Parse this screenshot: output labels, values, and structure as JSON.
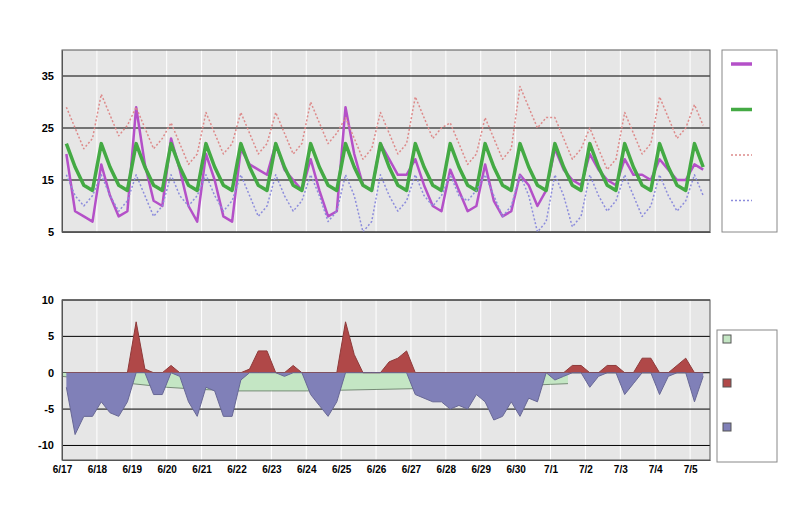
{
  "chart_data": [
    {
      "type": "line",
      "x": [
        0.125,
        0.375,
        0.625,
        0.875,
        1.125,
        1.375,
        1.625,
        1.875,
        2.125,
        2.375,
        2.625,
        2.875,
        3.125,
        3.375,
        3.625,
        3.875,
        4.125,
        4.375,
        4.625,
        4.875,
        5.125,
        5.375,
        5.625,
        5.875,
        6.125,
        6.375,
        6.625,
        6.875,
        7.125,
        7.375,
        7.625,
        7.875,
        8.125,
        8.375,
        8.625,
        8.875,
        9.125,
        9.375,
        9.625,
        9.875,
        10.125,
        10.375,
        10.625,
        10.875,
        11.125,
        11.375,
        11.625,
        11.875,
        12.125,
        12.375,
        12.625,
        12.875,
        13.125,
        13.375,
        13.625,
        13.875,
        14.125,
        14.375,
        14.625,
        14.875,
        15.125,
        15.375,
        15.625,
        15.875,
        16.125,
        16.375,
        16.625,
        16.875,
        17.125,
        17.375,
        17.625,
        17.875,
        18.125,
        18.375
      ],
      "series": [
        {
          "color": "#b450c8",
          "line_style": "solid",
          "values": [
            20,
            9,
            8,
            7,
            18,
            12,
            8,
            9,
            29,
            18,
            11,
            10,
            23,
            17,
            10,
            7,
            20,
            15,
            8,
            7,
            21,
            18,
            17,
            16,
            22,
            17,
            15,
            13,
            19,
            13,
            8,
            9,
            29,
            20,
            14,
            13,
            22,
            19,
            16,
            16,
            19,
            14,
            10,
            9,
            17,
            13,
            9,
            10,
            18,
            11,
            8,
            9,
            16,
            14,
            10,
            13,
            21,
            17,
            15,
            14,
            20,
            17,
            15,
            14,
            19,
            16,
            16,
            15,
            19,
            17,
            15,
            15,
            18,
            17
          ]
        },
        {
          "color": "#44aa44",
          "line_style": "solid",
          "values": [
            22,
            17.5,
            14,
            13,
            22,
            17.5,
            14,
            13,
            22,
            17.5,
            14,
            13,
            22,
            17.5,
            14,
            13,
            22,
            17.5,
            14,
            13,
            22,
            17.5,
            14,
            13,
            22,
            17.5,
            14,
            13,
            22,
            17.5,
            14,
            13,
            22,
            17.5,
            14,
            13,
            22,
            17.5,
            14,
            13,
            22,
            17.5,
            14,
            13,
            22,
            17.5,
            14,
            13,
            22,
            17.5,
            14,
            13,
            22,
            17.5,
            14,
            13,
            22,
            17.5,
            14,
            13,
            22,
            17.5,
            14,
            13,
            22,
            17.5,
            14,
            13,
            22,
            17.5,
            14,
            13,
            22,
            17.5
          ]
        },
        {
          "color": "#dd8a8a",
          "line_style": "dotted",
          "values": [
            29,
            25,
            21,
            23,
            31.5,
            27.5,
            23.5,
            25.5,
            29,
            25,
            21,
            23,
            26,
            22,
            18,
            20,
            28,
            24,
            20,
            22,
            28,
            24,
            20,
            22,
            28,
            24,
            20,
            22,
            30,
            26,
            22,
            24,
            27,
            23,
            19,
            21,
            28,
            24,
            20,
            22,
            31,
            27,
            23,
            25,
            26,
            22,
            18,
            20,
            27,
            23,
            19,
            21,
            33,
            29,
            25,
            27,
            27,
            23,
            19,
            21,
            25,
            21,
            17,
            19,
            28,
            24,
            20,
            22,
            31,
            27,
            23,
            25,
            29.5,
            25.5
          ]
        },
        {
          "color": "#8c8cdc",
          "line_style": "dotted",
          "values": [
            16,
            12,
            10,
            12,
            16,
            12,
            9,
            11,
            16,
            12,
            8,
            10,
            16,
            12,
            10,
            12,
            16,
            12,
            9,
            11,
            16,
            12,
            8,
            10,
            16,
            12,
            9,
            11,
            16,
            12,
            7,
            9,
            16,
            12,
            5,
            7,
            16,
            12,
            9,
            11,
            16,
            12,
            10,
            12,
            16,
            12,
            11,
            13,
            16,
            12,
            8,
            10,
            16,
            12,
            5,
            7,
            16,
            12,
            6,
            8,
            16,
            12,
            9,
            11,
            16,
            12,
            8,
            10,
            16,
            12,
            9,
            11,
            16,
            12
          ]
        }
      ],
      "xlim": [
        0,
        18.57
      ],
      "xticks": [
        0,
        1,
        2,
        3,
        4,
        5,
        6,
        7,
        8,
        9,
        10,
        11,
        12,
        13,
        14,
        15,
        16,
        17,
        18
      ],
      "ylim": [
        5,
        40
      ],
      "yticks": [
        5,
        15,
        25,
        35
      ],
      "grid": true,
      "tick_labels": "y"
    },
    {
      "type": "area",
      "x": [
        0.125,
        0.375,
        0.625,
        0.875,
        1.125,
        1.375,
        1.625,
        1.875,
        2.125,
        2.375,
        2.625,
        2.875,
        3.125,
        3.375,
        3.625,
        3.875,
        4.125,
        4.375,
        4.625,
        4.875,
        5.125,
        5.375,
        5.625,
        5.875,
        6.125,
        6.375,
        6.625,
        6.875,
        7.125,
        7.375,
        7.625,
        7.875,
        8.125,
        8.375,
        8.625,
        8.875,
        9.125,
        9.375,
        9.625,
        9.875,
        10.125,
        10.375,
        10.625,
        10.875,
        11.125,
        11.375,
        11.625,
        11.875,
        12.125,
        12.375,
        12.625,
        12.875,
        13.125,
        13.375,
        13.625,
        13.875,
        14.125,
        14.375,
        14.625,
        14.875,
        15.125,
        15.375,
        15.625,
        15.875,
        16.125,
        16.375,
        16.625,
        16.875,
        17.125,
        17.375,
        17.625,
        17.875,
        18.125,
        18.375
      ],
      "series": [
        {
          "color": "#c4e6c4",
          "x": [
            0,
            1,
            2,
            3,
            4,
            5,
            6,
            7,
            8,
            9,
            10,
            11,
            12,
            13,
            14,
            14.5
          ],
          "values": [
            -0.5,
            -1,
            -1.5,
            -2,
            -2.3,
            -2.5,
            -2.5,
            -2.5,
            -2.4,
            -2.3,
            -2.2,
            -2.2,
            -2,
            -1.8,
            -1.6,
            -1.5
          ]
        },
        {
          "color": "#b04848",
          "values": [
            0,
            0,
            0,
            0,
            0,
            0,
            0,
            0,
            7,
            0.5,
            0,
            0,
            1,
            0,
            0,
            0,
            0,
            0,
            0,
            0,
            0,
            0.5,
            3,
            3,
            0,
            0,
            1,
            0,
            0,
            0,
            0,
            0,
            7,
            2.5,
            0,
            0,
            0,
            1.5,
            2,
            3,
            0,
            0,
            0,
            0,
            0,
            0,
            0,
            0,
            0,
            0,
            0,
            0,
            0,
            0,
            0,
            0,
            0,
            0,
            1,
            1,
            0,
            0,
            1,
            1,
            0,
            0,
            2,
            2,
            0,
            0,
            1,
            2,
            0,
            0
          ]
        },
        {
          "color": "#8080b8",
          "values": [
            -2,
            -8.5,
            -6,
            -6,
            -4,
            -5.5,
            -6,
            -4,
            0,
            0,
            -3,
            -3,
            0,
            -0.5,
            -4,
            -6,
            -2,
            -2.5,
            -6,
            -6,
            -1,
            0,
            0,
            0,
            0,
            -0.5,
            0,
            0,
            -3,
            -4.5,
            -6,
            -4,
            0,
            0,
            0,
            0,
            0,
            0,
            0,
            0,
            -3,
            -3.5,
            -4,
            -4,
            -5,
            -4.5,
            -5,
            -3,
            -4,
            -6.5,
            -6,
            -4,
            -6,
            -3.5,
            -4,
            0,
            -1,
            -0.5,
            0,
            0,
            -2,
            -0.5,
            0,
            0,
            -3,
            -1.5,
            0,
            0,
            -3,
            -0.5,
            0,
            0,
            -4,
            -0.5
          ]
        }
      ],
      "xlim": [
        0,
        18.57
      ],
      "xticks": [
        {
          "value": 0,
          "label": "6/17"
        },
        {
          "value": 1,
          "label": "6/18"
        },
        {
          "value": 2,
          "label": "6/19"
        },
        {
          "value": 3,
          "label": "6/20"
        },
        {
          "value": 4,
          "label": "6/21"
        },
        {
          "value": 5,
          "label": "6/22"
        },
        {
          "value": 6,
          "label": "6/23"
        },
        {
          "value": 7,
          "label": "6/24"
        },
        {
          "value": 8,
          "label": "6/25"
        },
        {
          "value": 9,
          "label": "6/26"
        },
        {
          "value": 10,
          "label": "6/27"
        },
        {
          "value": 11,
          "label": "6/28"
        },
        {
          "value": 12,
          "label": "6/29"
        },
        {
          "value": 13,
          "label": "6/30"
        },
        {
          "value": 14,
          "label": "7/1"
        },
        {
          "value": 15,
          "label": "7/2"
        },
        {
          "value": 16,
          "label": "7/3"
        },
        {
          "value": 17,
          "label": "7/4"
        },
        {
          "value": 18,
          "label": "7/5"
        }
      ],
      "ylim": [
        -12,
        10
      ],
      "yticks": [
        -10,
        -5,
        0,
        5,
        10
      ],
      "grid": true
    }
  ]
}
